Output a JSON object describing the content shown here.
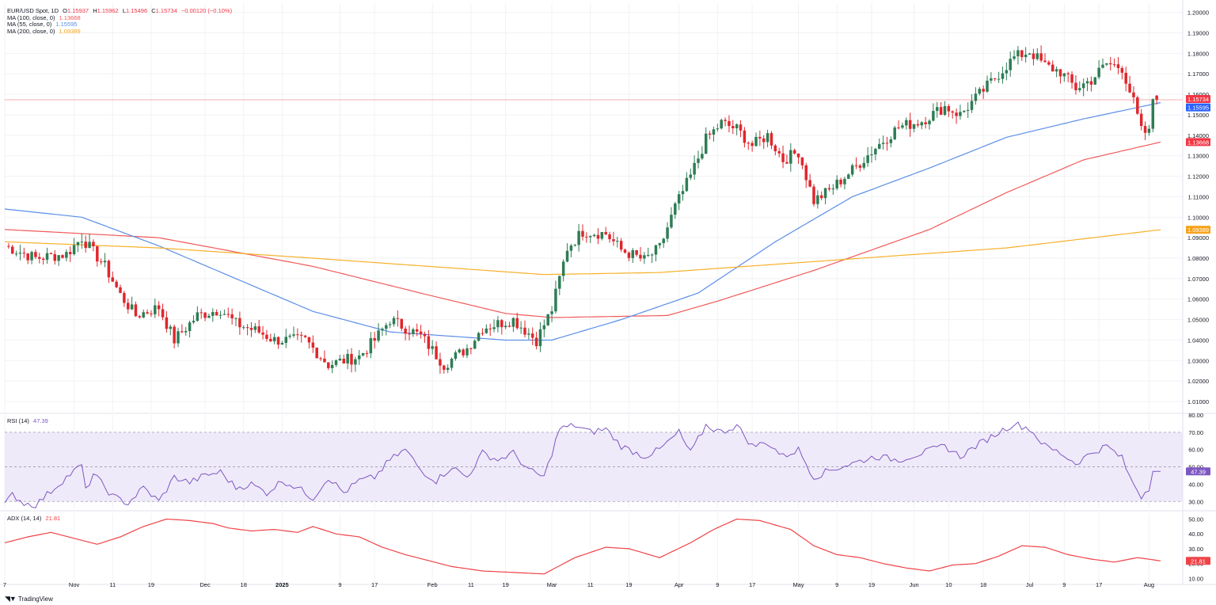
{
  "legend": {
    "symbol": "EUR/USD Spot, 1D",
    "o_label": "O",
    "o": "1.15937",
    "h_label": "H",
    "h": "1.15962",
    "l_label": "L",
    "l": "1.15496",
    "c_label": "C",
    "c": "1.15734",
    "change": "−0.00120 (−0.10%)",
    "ma100_label": "MA (100, close, 0)",
    "ma100_value": "1.13668",
    "ma55_label": "MA (55, close, 0)",
    "ma55_value": "1.15595",
    "ma200_label": "MA (200, close, 0)",
    "ma200_value": "1.09389",
    "rsi_label": "RSI (14)",
    "rsi_value": "47.39",
    "adx_label": "ADX (14, 14)",
    "adx_value": "21.81"
  },
  "colors": {
    "up": "#2e7d55",
    "down": "#e0262c",
    "ma55": "#5b8ee8",
    "ma100": "#f05a5a",
    "ma200": "#f7b02a",
    "rsi": "#7e57c2",
    "adx": "#ef4347",
    "rsi_band": "#efeaf9",
    "grid": "#f1f2f4",
    "axis_text": "#131722"
  },
  "branding": {
    "logo_icon": "tradingview-logo-icon",
    "text": "TradingView"
  },
  "chart_data": [
    {
      "type": "candlestick",
      "title": "EUR/USD Spot, 1D",
      "y_ticks": [
        "1.20000",
        "1.19000",
        "1.18000",
        "1.17000",
        "1.16000",
        "1.15000",
        "1.14000",
        "1.13000",
        "1.12000",
        "1.11000",
        "1.10000",
        "1.09000",
        "1.08000",
        "1.07000",
        "1.06000",
        "1.05000",
        "1.04000",
        "1.03000",
        "1.02000",
        "1.01000"
      ],
      "ylim": [
        1.005,
        1.2045
      ],
      "x_ticks": [
        "7",
        "Nov",
        "11",
        "19",
        "Dec",
        "18",
        "2025",
        "9",
        "17",
        "Feb",
        "11",
        "19",
        "Mar",
        "11",
        "19",
        "Apr",
        "9",
        "17",
        "May",
        "9",
        "19",
        "Jun",
        "10",
        "18",
        "Jul",
        "9",
        "17",
        "Aug"
      ],
      "x_tick_bar_index": [
        0,
        18,
        28,
        38,
        52,
        62,
        72,
        87,
        96,
        111,
        121,
        130,
        142,
        152,
        162,
        175,
        185,
        194,
        206,
        216,
        225,
        236,
        245,
        254,
        266,
        275,
        284,
        297
      ],
      "bar_count": 300,
      "candle_anchors": [
        [
          0,
          1.086
        ],
        [
          8,
          1.08
        ],
        [
          16,
          1.082
        ],
        [
          20,
          1.09
        ],
        [
          26,
          1.076
        ],
        [
          30,
          1.062
        ],
        [
          34,
          1.052
        ],
        [
          40,
          1.056
        ],
        [
          44,
          1.04
        ],
        [
          50,
          1.052
        ],
        [
          56,
          1.055
        ],
        [
          60,
          1.048
        ],
        [
          66,
          1.044
        ],
        [
          70,
          1.04
        ],
        [
          78,
          1.04
        ],
        [
          84,
          1.028
        ],
        [
          92,
          1.032
        ],
        [
          96,
          1.04
        ],
        [
          100,
          1.05
        ],
        [
          108,
          1.042
        ],
        [
          114,
          1.028
        ],
        [
          120,
          1.036
        ],
        [
          124,
          1.046
        ],
        [
          132,
          1.05
        ],
        [
          138,
          1.04
        ],
        [
          142,
          1.055
        ],
        [
          146,
          1.085
        ],
        [
          150,
          1.093
        ],
        [
          156,
          1.092
        ],
        [
          160,
          1.084
        ],
        [
          166,
          1.079
        ],
        [
          170,
          1.085
        ],
        [
          174,
          1.105
        ],
        [
          178,
          1.12
        ],
        [
          182,
          1.138
        ],
        [
          186,
          1.146
        ],
        [
          190,
          1.143
        ],
        [
          194,
          1.135
        ],
        [
          198,
          1.14
        ],
        [
          202,
          1.128
        ],
        [
          206,
          1.132
        ],
        [
          210,
          1.108
        ],
        [
          214,
          1.113
        ],
        [
          220,
          1.123
        ],
        [
          226,
          1.134
        ],
        [
          232,
          1.144
        ],
        [
          238,
          1.147
        ],
        [
          244,
          1.154
        ],
        [
          248,
          1.15
        ],
        [
          252,
          1.158
        ],
        [
          258,
          1.17
        ],
        [
          262,
          1.178
        ],
        [
          266,
          1.181
        ],
        [
          270,
          1.174
        ],
        [
          274,
          1.171
        ],
        [
          278,
          1.163
        ],
        [
          282,
          1.167
        ],
        [
          286,
          1.175
        ],
        [
          290,
          1.173
        ],
        [
          293,
          1.156
        ],
        [
          295,
          1.142
        ],
        [
          297,
          1.141
        ],
        [
          298,
          1.158
        ],
        [
          300,
          1.157
        ]
      ],
      "last_candle": {
        "open": 1.15937,
        "high": 1.15962,
        "low": 1.15496,
        "close": 1.15734
      },
      "series": [
        {
          "name": "MA (100, close, 0)",
          "anchors": [
            [
              0,
              1.094
            ],
            [
              40,
              1.09
            ],
            [
              80,
              1.076
            ],
            [
              110,
              1.062
            ],
            [
              130,
              1.053
            ],
            [
              142,
              1.051
            ],
            [
              172,
              1.052
            ],
            [
              185,
              1.059
            ],
            [
              210,
              1.074
            ],
            [
              240,
              1.094
            ],
            [
              260,
              1.112
            ],
            [
              280,
              1.128
            ],
            [
              300,
              1.13668
            ]
          ]
        },
        {
          "name": "MA (55, close, 0)",
          "anchors": [
            [
              0,
              1.104
            ],
            [
              20,
              1.1
            ],
            [
              40,
              1.086
            ],
            [
              60,
              1.07
            ],
            [
              80,
              1.054
            ],
            [
              100,
              1.044
            ],
            [
              130,
              1.04
            ],
            [
              142,
              1.04
            ],
            [
              160,
              1.05
            ],
            [
              180,
              1.063
            ],
            [
              200,
              1.088
            ],
            [
              220,
              1.11
            ],
            [
              240,
              1.124
            ],
            [
              260,
              1.139
            ],
            [
              280,
              1.148
            ],
            [
              300,
              1.15595
            ]
          ]
        },
        {
          "name": "MA (200, close, 0)",
          "anchors": [
            [
              0,
              1.088
            ],
            [
              40,
              1.085
            ],
            [
              80,
              1.08
            ],
            [
              110,
              1.076
            ],
            [
              140,
              1.072
            ],
            [
              170,
              1.073
            ],
            [
              200,
              1.077
            ],
            [
              230,
              1.081
            ],
            [
              260,
              1.085
            ],
            [
              300,
              1.09389
            ]
          ]
        }
      ],
      "price_labels": [
        "1.15734",
        "1.15595",
        "1.13668",
        "1.09389"
      ]
    },
    {
      "type": "line",
      "title": "RSI (14)",
      "y_ticks": [
        "80.00",
        "70.00",
        "60.00",
        "50.00",
        "40.00",
        "30.00"
      ],
      "ylim": [
        26,
        80
      ],
      "bands": [
        30,
        50,
        70
      ],
      "series": [
        {
          "name": "RSI (14)",
          "anchors": [
            [
              0,
              28
            ],
            [
              2,
              34
            ],
            [
              5,
              29
            ],
            [
              8,
              28
            ],
            [
              12,
              36
            ],
            [
              16,
              44
            ],
            [
              20,
              51
            ],
            [
              21,
              36
            ],
            [
              23,
              46
            ],
            [
              28,
              33
            ],
            [
              32,
              29
            ],
            [
              36,
              38
            ],
            [
              40,
              30
            ],
            [
              44,
              44
            ],
            [
              48,
              41
            ],
            [
              52,
              45
            ],
            [
              56,
              47
            ],
            [
              60,
              38
            ],
            [
              64,
              40
            ],
            [
              68,
              35
            ],
            [
              72,
              42
            ],
            [
              76,
              38
            ],
            [
              80,
              32
            ],
            [
              84,
              44
            ],
            [
              88,
              35
            ],
            [
              92,
              42
            ],
            [
              96,
              44
            ],
            [
              100,
              54
            ],
            [
              104,
              60
            ],
            [
              108,
              48
            ],
            [
              112,
              42
            ],
            [
              116,
              50
            ],
            [
              120,
              44
            ],
            [
              124,
              58
            ],
            [
              128,
              54
            ],
            [
              132,
              58
            ],
            [
              136,
              48
            ],
            [
              140,
              44
            ],
            [
              144,
              72
            ],
            [
              148,
              74
            ],
            [
              152,
              70
            ],
            [
              156,
              72
            ],
            [
              160,
              62
            ],
            [
              166,
              56
            ],
            [
              170,
              60
            ],
            [
              175,
              70
            ],
            [
              178,
              58
            ],
            [
              182,
              74
            ],
            [
              186,
              70
            ],
            [
              190,
              74
            ],
            [
              194,
              62
            ],
            [
              198,
              64
            ],
            [
              202,
              56
            ],
            [
              206,
              60
            ],
            [
              210,
              44
            ],
            [
              214,
              48
            ],
            [
              220,
              52
            ],
            [
              226,
              56
            ],
            [
              232,
              54
            ],
            [
              238,
              58
            ],
            [
              244,
              62
            ],
            [
              248,
              56
            ],
            [
              252,
              62
            ],
            [
              258,
              70
            ],
            [
              262,
              75
            ],
            [
              266,
              72
            ],
            [
              270,
              62
            ],
            [
              274,
              58
            ],
            [
              278,
              52
            ],
            [
              282,
              58
            ],
            [
              286,
              62
            ],
            [
              290,
              55
            ],
            [
              292,
              44
            ],
            [
              295,
              33
            ],
            [
              297,
              38
            ],
            [
              298,
              47.39
            ],
            [
              300,
              47.39
            ]
          ]
        }
      ],
      "value_label": "47.39"
    },
    {
      "type": "line",
      "title": "ADX (14, 14)",
      "y_ticks": [
        "50.00",
        "40.00",
        "30.00",
        "20.00",
        "10.00"
      ],
      "ylim": [
        7,
        54
      ],
      "series": [
        {
          "name": "ADX (14, 14)",
          "anchors": [
            [
              0,
              34
            ],
            [
              6,
              38
            ],
            [
              12,
              41
            ],
            [
              18,
              37
            ],
            [
              24,
              33
            ],
            [
              30,
              38
            ],
            [
              36,
              45
            ],
            [
              42,
              50
            ],
            [
              48,
              49
            ],
            [
              54,
              47
            ],
            [
              58,
              44
            ],
            [
              64,
              42
            ],
            [
              70,
              43
            ],
            [
              76,
              41
            ],
            [
              80,
              45
            ],
            [
              86,
              40
            ],
            [
              92,
              38
            ],
            [
              98,
              31
            ],
            [
              104,
              26
            ],
            [
              110,
              22
            ],
            [
              116,
              18
            ],
            [
              124,
              15
            ],
            [
              132,
              14
            ],
            [
              140,
              13
            ],
            [
              148,
              24
            ],
            [
              156,
              31
            ],
            [
              162,
              30
            ],
            [
              170,
              24
            ],
            [
              178,
              34
            ],
            [
              184,
              43
            ],
            [
              190,
              50
            ],
            [
              196,
              49
            ],
            [
              204,
              43
            ],
            [
              210,
              32
            ],
            [
              216,
              26
            ],
            [
              222,
              24
            ],
            [
              228,
              20
            ],
            [
              234,
              17
            ],
            [
              240,
              15
            ],
            [
              246,
              19
            ],
            [
              252,
              20
            ],
            [
              258,
              25
            ],
            [
              264,
              32
            ],
            [
              270,
              31
            ],
            [
              276,
              26
            ],
            [
              282,
              23
            ],
            [
              288,
              21
            ],
            [
              294,
              24
            ],
            [
              300,
              21.81
            ]
          ]
        }
      ],
      "value_label": "21.81"
    }
  ]
}
